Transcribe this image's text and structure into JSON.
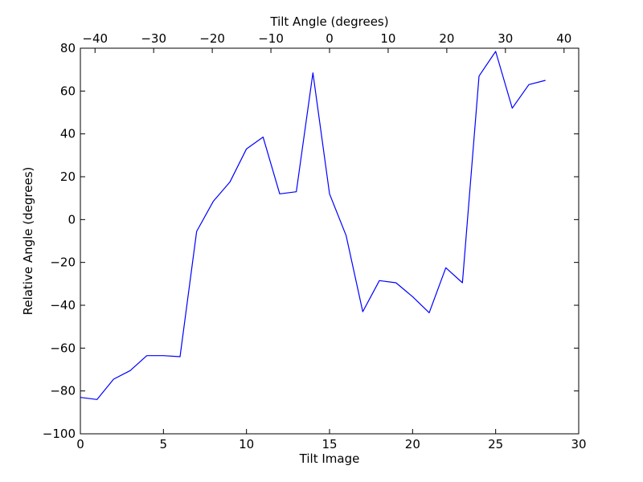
{
  "chart_data": {
    "type": "line",
    "xlabel": "Tilt Image",
    "ylabel": "Relative Angle (degrees)",
    "top_xlabel": "Tilt Angle (degrees)",
    "xlim": [
      0,
      30
    ],
    "ylim": [
      -100,
      80
    ],
    "top_xlim": [
      -42.5,
      42.5
    ],
    "x_ticks": [
      0,
      5,
      10,
      15,
      20,
      25,
      30
    ],
    "x_tick_labels": [
      "0",
      "5",
      "10",
      "15",
      "20",
      "25",
      "30"
    ],
    "y_ticks": [
      -100,
      -80,
      -60,
      -40,
      -20,
      0,
      20,
      40,
      60,
      80
    ],
    "y_tick_labels": [
      "−100",
      "−80",
      "−60",
      "−40",
      "−20",
      "0",
      "20",
      "40",
      "60",
      "80"
    ],
    "top_x_ticks": [
      -40,
      -30,
      -20,
      -10,
      0,
      10,
      20,
      30,
      40
    ],
    "top_x_tick_labels": [
      "−40",
      "−30",
      "−20",
      "−10",
      "0",
      "10",
      "20",
      "30",
      "40"
    ],
    "grid": false,
    "series": [
      {
        "color": "#0000ff",
        "x": [
          0,
          1,
          2,
          3,
          4,
          5,
          6,
          7,
          8,
          9,
          10,
          11,
          12,
          13,
          14,
          15,
          16,
          17,
          18,
          19,
          20,
          21,
          22,
          23,
          24,
          25,
          26,
          27,
          28
        ],
        "values": [
          -83,
          -84,
          -74.5,
          -70.5,
          -63.5,
          -63.5,
          -64,
          -5.5,
          8.5,
          17.5,
          33,
          38.5,
          12,
          13,
          68.5,
          12,
          -7.5,
          -43,
          -28.5,
          -29.5,
          -36,
          -43.5,
          -22.5,
          -29.5,
          67,
          78.5,
          52,
          63,
          65
        ]
      }
    ]
  }
}
